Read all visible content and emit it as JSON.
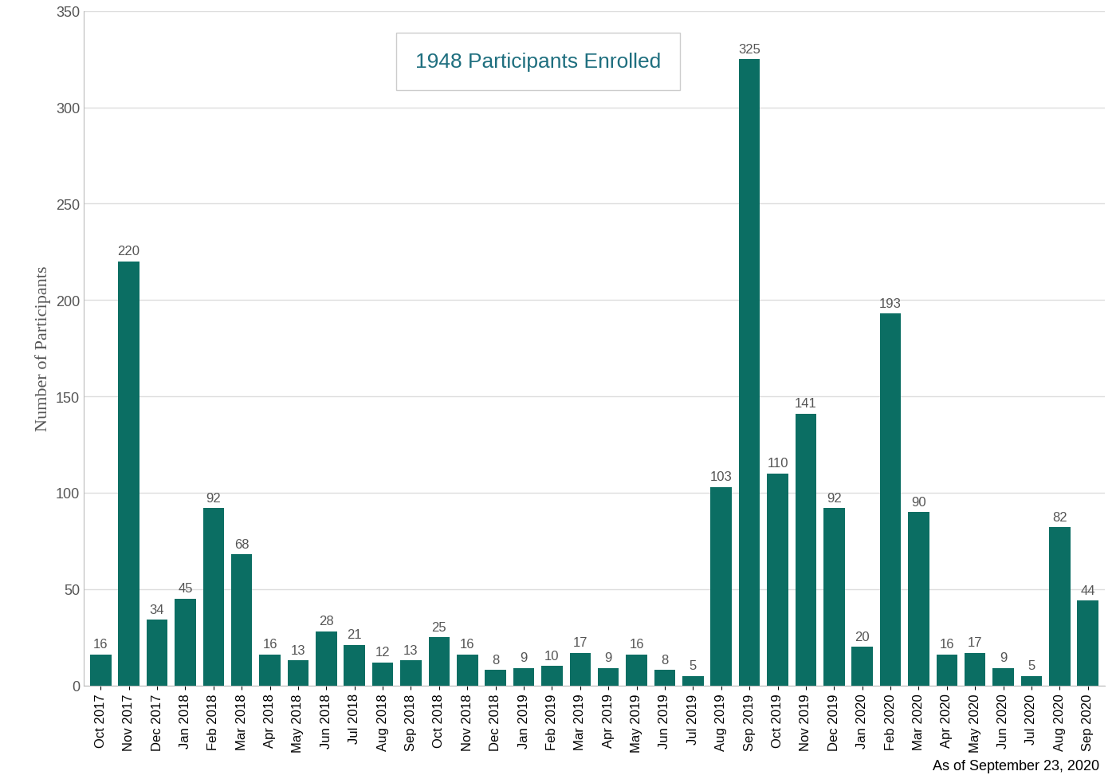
{
  "chart_data": {
    "type": "bar",
    "y_label": "Number of Participants",
    "annotations": [
      "1948 Participants Enrolled",
      "As of September 23, 2020"
    ],
    "categories": [
      "Oct 2017",
      "Nov 2017",
      "Dec 2017",
      "Jan 2018",
      "Feb 2018",
      "Mar 2018",
      "Apr 2018",
      "May 2018",
      "Jun 2018",
      "Jul 2018",
      "Aug 2018",
      "Sep 2018",
      "Oct 2018",
      "Nov 2018",
      "Dec 2018",
      "Jan 2019",
      "Feb 2019",
      "Mar 2019",
      "Apr 2019",
      "May 2019",
      "Jun 2019",
      "Jul 2019",
      "Aug 2019",
      "Sep 2019",
      "Oct 2019",
      "Nov 2019",
      "Dec 2019",
      "Jan 2020",
      "Feb 2020",
      "Mar 2020",
      "Apr 2020",
      "May 2020",
      "Jun 2020",
      "Jul 2020",
      "Aug 2020",
      "Sep 2020"
    ],
    "values": [
      16,
      220,
      34,
      45,
      92,
      68,
      16,
      13,
      28,
      21,
      12,
      13,
      25,
      16,
      8,
      9,
      10,
      17,
      9,
      16,
      8,
      5,
      103,
      325,
      110,
      141,
      92,
      20,
      193,
      90,
      16,
      17,
      9,
      5,
      82,
      44
    ],
    "color": "#0b6e63",
    "ylim": [
      0,
      350
    ],
    "yticks": [
      0,
      50,
      100,
      150,
      200,
      250,
      300,
      350
    ],
    "grid": true,
    "data_labels": true
  }
}
